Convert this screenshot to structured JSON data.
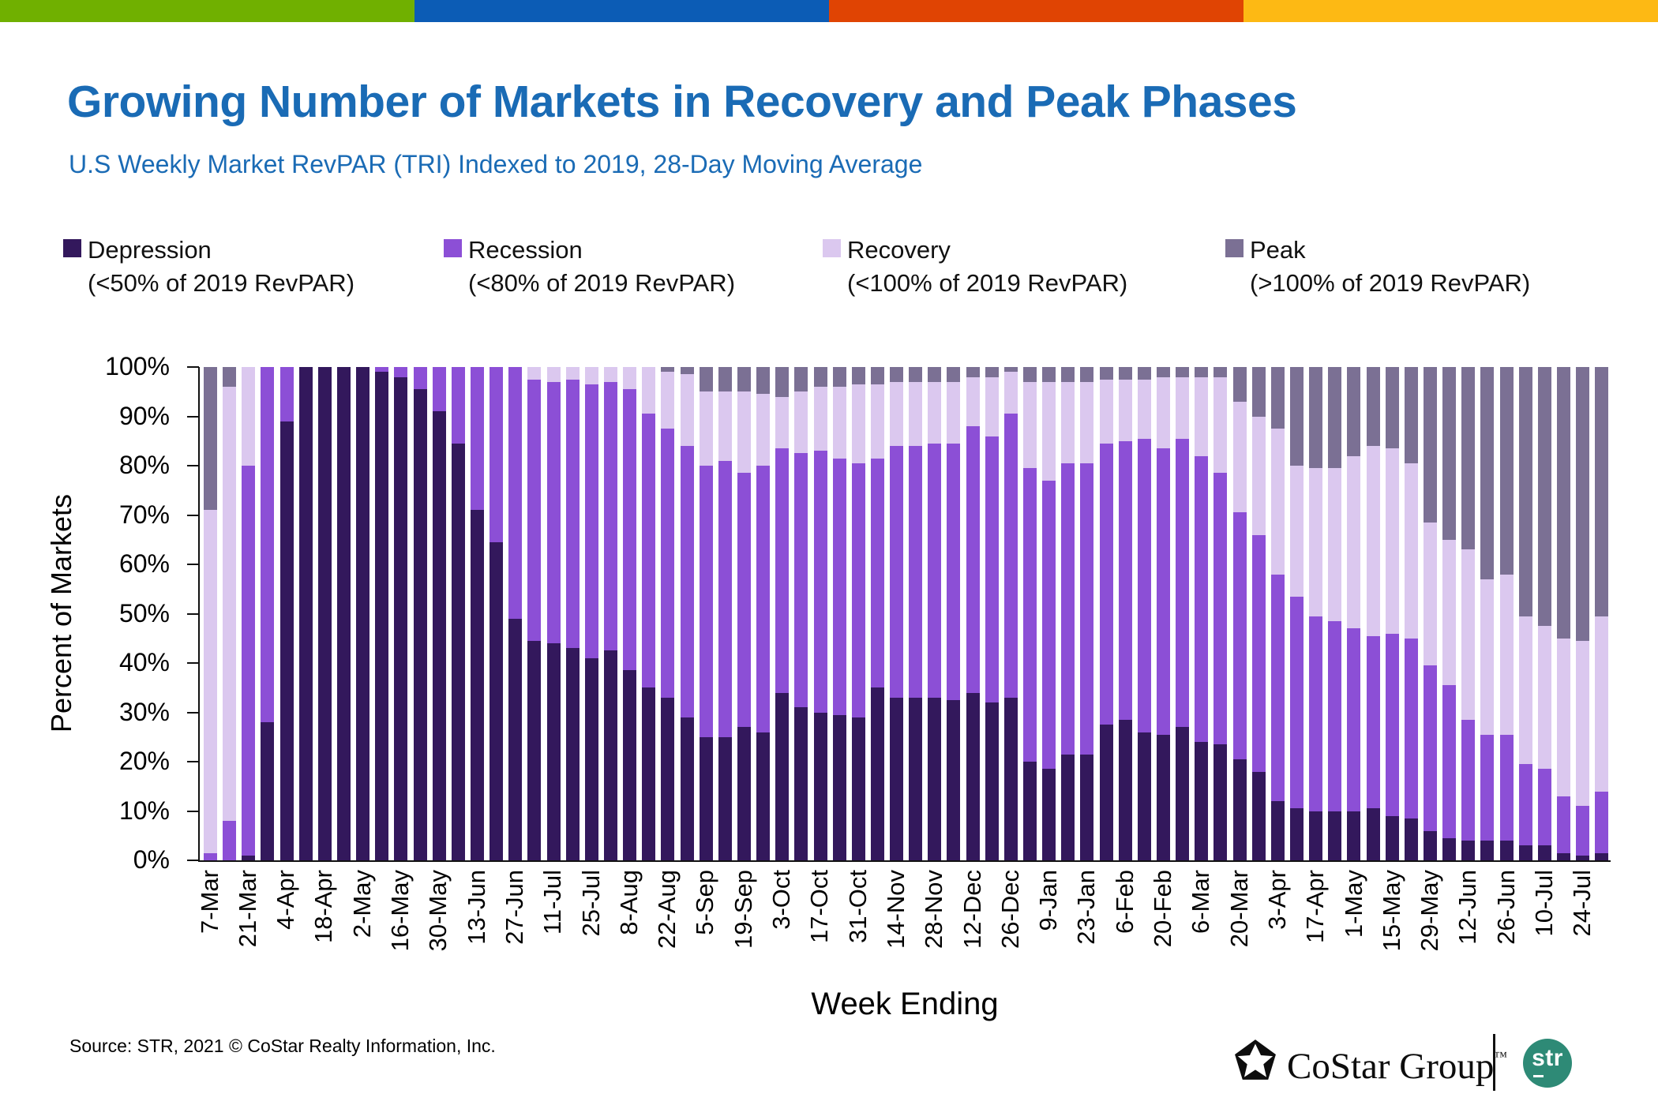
{
  "header": {
    "title": "Growing Number of Markets in Recovery and Peak Phases",
    "subtitle": "U.S Weekly Market RevPAR (TRI) Indexed to 2019, 28-Day Moving Average"
  },
  "brand_bar": {
    "colors": [
      "#70b000",
      "#0c5cb5",
      "#e04403",
      "#fdb914"
    ]
  },
  "legend": {
    "items": [
      {
        "name": "Depression",
        "detail": "(<50% of 2019 RevPAR)",
        "color": "#33185c"
      },
      {
        "name": "Recession",
        "detail": "(<80% of 2019 RevPAR)",
        "color": "#8c4fd6"
      },
      {
        "name": "Recovery",
        "detail": "(<100% of 2019 RevPAR)",
        "color": "#dbc8ef"
      },
      {
        "name": "Peak",
        "detail": "(>100% of 2019 RevPAR)",
        "color": "#7b7094"
      }
    ]
  },
  "chart_data": {
    "type": "bar",
    "stacked": true,
    "ylabel": "Percent of Markets",
    "xlabel": "Week Ending",
    "ylim": [
      0,
      100
    ],
    "grid": false,
    "legend_position": "top",
    "ytick_labels": [
      "100%",
      "90%",
      "80%",
      "70%",
      "60%",
      "50%",
      "40%",
      "30%",
      "20%",
      "10%",
      "0%"
    ],
    "series_names": [
      "Depression",
      "Recession",
      "Recovery",
      "Peak"
    ],
    "series_colors": [
      "#33185c",
      "#8c4fd6",
      "#dbc8ef",
      "#7b7094"
    ],
    "bars": [
      {
        "label": "7-Mar",
        "values": [
          0,
          1.5,
          69.5,
          29
        ]
      },
      {
        "label": "",
        "values": [
          0,
          8,
          88,
          4
        ]
      },
      {
        "label": "21-Mar",
        "values": [
          1,
          79,
          20,
          0
        ]
      },
      {
        "label": "",
        "values": [
          28,
          72,
          0,
          0
        ]
      },
      {
        "label": "4-Apr",
        "values": [
          89,
          11,
          0,
          0
        ]
      },
      {
        "label": "",
        "values": [
          100,
          0,
          0,
          0
        ]
      },
      {
        "label": "18-Apr",
        "values": [
          100,
          0,
          0,
          0
        ]
      },
      {
        "label": "",
        "values": [
          100,
          0,
          0,
          0
        ]
      },
      {
        "label": "2-May",
        "values": [
          100,
          0,
          0,
          0
        ]
      },
      {
        "label": "",
        "values": [
          99,
          1,
          0,
          0
        ]
      },
      {
        "label": "16-May",
        "values": [
          98,
          2,
          0,
          0
        ]
      },
      {
        "label": "",
        "values": [
          95.5,
          4.5,
          0,
          0
        ]
      },
      {
        "label": "30-May",
        "values": [
          91,
          9,
          0,
          0
        ]
      },
      {
        "label": "",
        "values": [
          84.5,
          15.5,
          0,
          0
        ]
      },
      {
        "label": "13-Jun",
        "values": [
          71,
          29,
          0,
          0
        ]
      },
      {
        "label": "",
        "values": [
          64.5,
          35.5,
          0,
          0
        ]
      },
      {
        "label": "27-Jun",
        "values": [
          49,
          51,
          0,
          0
        ]
      },
      {
        "label": "",
        "values": [
          44.5,
          53,
          2.5,
          0
        ]
      },
      {
        "label": "11-Jul",
        "values": [
          44,
          53,
          3,
          0
        ]
      },
      {
        "label": "",
        "values": [
          43,
          54.5,
          2.5,
          0
        ]
      },
      {
        "label": "25-Jul",
        "values": [
          41,
          55.5,
          3.5,
          0
        ]
      },
      {
        "label": "",
        "values": [
          42.5,
          54.5,
          3,
          0
        ]
      },
      {
        "label": "8-Aug",
        "values": [
          38.5,
          57,
          4.5,
          0
        ]
      },
      {
        "label": "",
        "values": [
          35,
          55.5,
          9.5,
          0
        ]
      },
      {
        "label": "22-Aug",
        "values": [
          33,
          54.5,
          11.5,
          1
        ]
      },
      {
        "label": "",
        "values": [
          29,
          55,
          14.5,
          1.5
        ]
      },
      {
        "label": "5-Sep",
        "values": [
          25,
          55,
          15,
          5
        ]
      },
      {
        "label": "",
        "values": [
          25,
          56,
          14,
          5
        ]
      },
      {
        "label": "19-Sep",
        "values": [
          27,
          51.5,
          16.5,
          5
        ]
      },
      {
        "label": "",
        "values": [
          26,
          54,
          14.5,
          5.5
        ]
      },
      {
        "label": "3-Oct",
        "values": [
          34,
          49.5,
          10.5,
          6
        ]
      },
      {
        "label": "",
        "values": [
          31,
          51.5,
          12.5,
          5
        ]
      },
      {
        "label": "17-Oct",
        "values": [
          30,
          53,
          13,
          4
        ]
      },
      {
        "label": "",
        "values": [
          29.5,
          52,
          14.5,
          4
        ]
      },
      {
        "label": "31-Oct",
        "values": [
          29,
          51.5,
          16,
          3.5
        ]
      },
      {
        "label": "",
        "values": [
          35,
          46.5,
          15,
          3.5
        ]
      },
      {
        "label": "14-Nov",
        "values": [
          33,
          51,
          13,
          3
        ]
      },
      {
        "label": "",
        "values": [
          33,
          51,
          13,
          3
        ]
      },
      {
        "label": "28-Nov",
        "values": [
          33,
          51.5,
          12.5,
          3
        ]
      },
      {
        "label": "",
        "values": [
          32.5,
          52,
          12.5,
          3
        ]
      },
      {
        "label": "12-Dec",
        "values": [
          34,
          54,
          10,
          2
        ]
      },
      {
        "label": "",
        "values": [
          32,
          54,
          12,
          2
        ]
      },
      {
        "label": "26-Dec",
        "values": [
          33,
          57.5,
          8.5,
          1
        ]
      },
      {
        "label": "",
        "values": [
          20,
          59.5,
          17.5,
          3
        ]
      },
      {
        "label": "9-Jan",
        "values": [
          18.5,
          58.5,
          20,
          3
        ]
      },
      {
        "label": "",
        "values": [
          21.5,
          59,
          16.5,
          3
        ]
      },
      {
        "label": "23-Jan",
        "values": [
          21.5,
          59,
          16.5,
          3
        ]
      },
      {
        "label": "",
        "values": [
          27.5,
          57,
          13,
          2.5
        ]
      },
      {
        "label": "6-Feb",
        "values": [
          28.5,
          56.5,
          12.5,
          2.5
        ]
      },
      {
        "label": "",
        "values": [
          26,
          59.5,
          12,
          2.5
        ]
      },
      {
        "label": "20-Feb",
        "values": [
          25.5,
          58,
          14.5,
          2
        ]
      },
      {
        "label": "",
        "values": [
          27,
          58.5,
          12.5,
          2
        ]
      },
      {
        "label": "6-Mar",
        "values": [
          24,
          58,
          16,
          2
        ]
      },
      {
        "label": "",
        "values": [
          23.5,
          55,
          19.5,
          2
        ]
      },
      {
        "label": "20-Mar",
        "values": [
          20.5,
          50,
          22.5,
          7
        ]
      },
      {
        "label": "",
        "values": [
          18,
          48,
          24,
          10
        ]
      },
      {
        "label": "3-Apr",
        "values": [
          12,
          46,
          29.5,
          12.5
        ]
      },
      {
        "label": "",
        "values": [
          10.5,
          43,
          26.5,
          20
        ]
      },
      {
        "label": "17-Apr",
        "values": [
          10,
          39.5,
          30,
          20.5
        ]
      },
      {
        "label": "",
        "values": [
          10,
          38.5,
          31,
          20.5
        ]
      },
      {
        "label": "1-May",
        "values": [
          10,
          37,
          35,
          18
        ]
      },
      {
        "label": "",
        "values": [
          10.5,
          35,
          38.5,
          16
        ]
      },
      {
        "label": "15-May",
        "values": [
          9,
          37,
          37.5,
          16.5
        ]
      },
      {
        "label": "",
        "values": [
          8.5,
          36.5,
          35.5,
          19.5
        ]
      },
      {
        "label": "29-May",
        "values": [
          6,
          33.5,
          29,
          31.5
        ]
      },
      {
        "label": "",
        "values": [
          4.5,
          31,
          29.5,
          35
        ]
      },
      {
        "label": "12-Jun",
        "values": [
          4,
          24.5,
          34.5,
          37
        ]
      },
      {
        "label": "",
        "values": [
          4,
          21.5,
          31.5,
          43
        ]
      },
      {
        "label": "26-Jun",
        "values": [
          4,
          21.5,
          32.5,
          42
        ]
      },
      {
        "label": "",
        "values": [
          3,
          16.5,
          30,
          50.5
        ]
      },
      {
        "label": "10-Jul",
        "values": [
          3,
          15.5,
          29,
          52.5
        ]
      },
      {
        "label": "",
        "values": [
          1.5,
          11.5,
          32,
          55
        ]
      },
      {
        "label": "24-Jul",
        "values": [
          1,
          10,
          33.5,
          55.5
        ]
      },
      {
        "label": "",
        "values": [
          1.5,
          12.5,
          35.5,
          50.5
        ]
      }
    ]
  },
  "footer": {
    "source": "Source: STR, 2021 © CoStar Realty Information, Inc.",
    "costar_logo_text": "CoStar Group",
    "costar_tm": "™",
    "str_logo_text": "str"
  }
}
